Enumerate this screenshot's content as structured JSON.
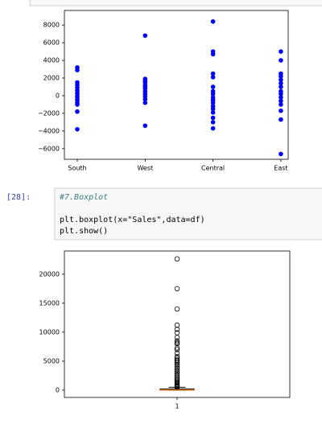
{
  "cell": {
    "prompt": "[28]:",
    "code": [
      "#7.Boxplot",
      "plt.boxplot(x=\"Sales\",data=df)",
      "plt.show()"
    ]
  },
  "chart_data": [
    {
      "type": "scatter",
      "categories": [
        "South",
        "West",
        "Central",
        "East"
      ],
      "color": "#0000ff",
      "values": [
        [
          3200,
          2900,
          1500,
          1200,
          900,
          600,
          300,
          0,
          -200,
          -500,
          -800,
          -1000,
          -1800,
          -3800
        ],
        [
          6800,
          1900,
          1700,
          1500,
          1200,
          1000,
          800,
          500,
          200,
          -100,
          -400,
          -800,
          -3400
        ],
        [
          8400,
          5000,
          4700,
          2500,
          2100,
          1000,
          500,
          200,
          -200,
          -500,
          -800,
          -1200,
          -1500,
          -1900,
          -2500,
          -3000,
          -3700
        ],
        [
          5000,
          4000,
          2500,
          2200,
          1800,
          1400,
          1000,
          500,
          200,
          -200,
          -600,
          -1000,
          -1700,
          -2700,
          -6600
        ]
      ],
      "ylim": [
        -7200,
        9650
      ],
      "yticks": [
        {
          "value": -6000,
          "label": "−6000"
        },
        {
          "value": -4000,
          "label": "−4000"
        },
        {
          "value": -2000,
          "label": "−2000"
        },
        0,
        2000,
        4000,
        6000,
        8000
      ]
    },
    {
      "type": "box",
      "categories": [
        "1"
      ],
      "color": "#ff7f0e",
      "boxes": [
        {
          "whislo": 0.4,
          "q1": 17,
          "med": 55,
          "q3": 210,
          "whishi": 500,
          "fliers": [
            22638,
            17500,
            14000,
            11200,
            10500,
            9900,
            9100,
            8500,
            8200,
            8000,
            7300,
            7000,
            6400,
            5800,
            5500,
            5200,
            5000,
            4700,
            4400,
            4100,
            3800,
            3500,
            3200,
            2900,
            2600,
            2300,
            2000,
            1800,
            1600,
            1400,
            1200,
            1000,
            850,
            700,
            600,
            520
          ]
        }
      ],
      "ylim": [
        -1250,
        24000
      ],
      "yticks": [
        0,
        5000,
        10000,
        15000,
        20000
      ]
    }
  ]
}
